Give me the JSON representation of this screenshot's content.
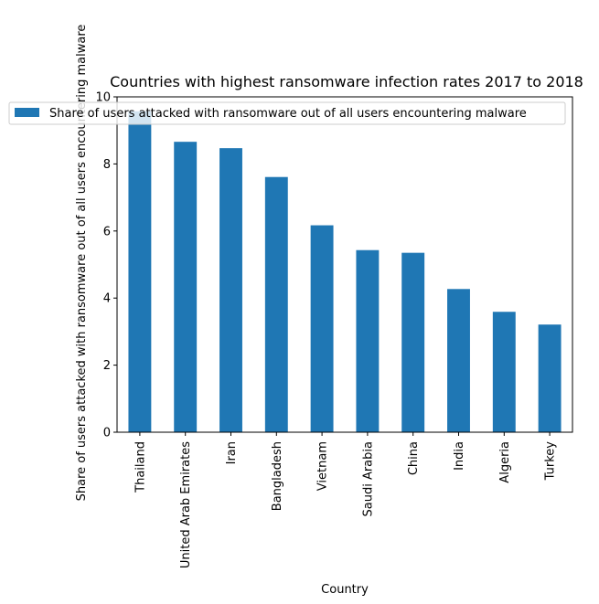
{
  "chart_data": {
    "type": "bar",
    "title": "Countries with highest ransomware infection rates 2017 to 2018",
    "xlabel": "Country",
    "ylabel": "Share of users attacked with ransomware out of all users encountering malware",
    "categories": [
      "Thailand",
      "United Arab Emirates",
      "Iran",
      "Bangladesh",
      "Vietnam",
      "Saudi Arabia",
      "China",
      "India",
      "Algeria",
      "Turkey"
    ],
    "series": [
      {
        "name": "Share of users attacked with ransomware out of all users encountering malware",
        "values": [
          9.57,
          8.66,
          8.47,
          7.61,
          6.17,
          5.43,
          5.35,
          4.27,
          3.59,
          3.21
        ],
        "color": "#1f77b4"
      }
    ],
    "ylim": [
      0,
      10
    ],
    "yticks": [
      "0",
      "2",
      "4",
      "6",
      "8",
      "10"
    ],
    "grid": false,
    "legend_position": "upper-left"
  }
}
